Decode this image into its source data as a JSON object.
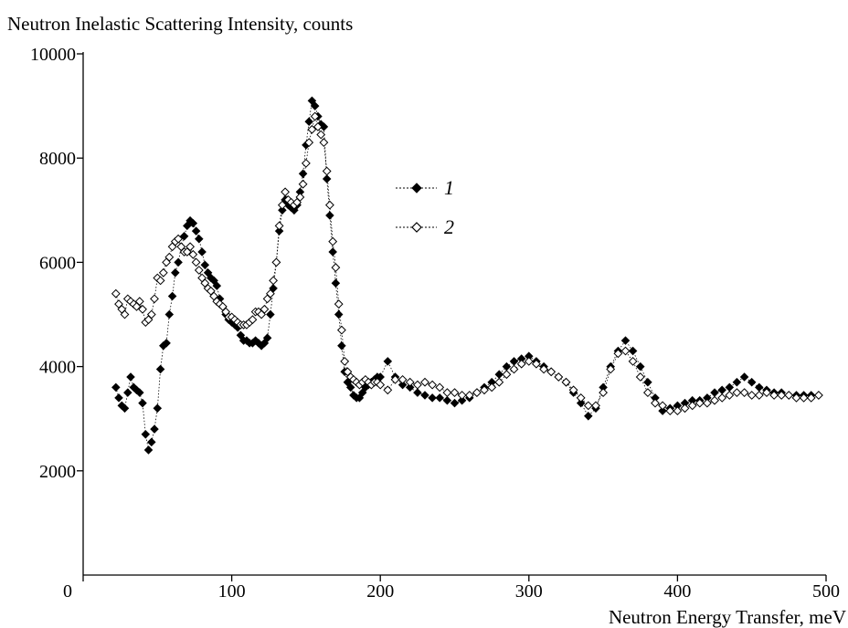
{
  "chart_data": {
    "type": "scatter",
    "ylabel": "Neutron Inelastic Scattering Intensity, counts",
    "xlabel": "Neutron Energy Transfer, meV",
    "xlim": [
      0,
      500
    ],
    "ylim": [
      0,
      10000
    ],
    "x_ticks": [
      0,
      100,
      200,
      300,
      400,
      500
    ],
    "y_ticks": [
      2000,
      4000,
      6000,
      8000,
      10000
    ],
    "y_tick_labels": [
      "2000",
      "4000",
      "6000",
      "8000",
      "10000"
    ],
    "origin_label": "0",
    "grid": false,
    "legend_position": "upper-middle",
    "series": [
      {
        "name": "1",
        "marker": "filled-diamond",
        "color": "#000000",
        "x": [
          22,
          24,
          26,
          28,
          30,
          32,
          34,
          36,
          38,
          40,
          42,
          44,
          46,
          48,
          50,
          52,
          54,
          56,
          58,
          60,
          62,
          64,
          66,
          68,
          70,
          72,
          74,
          76,
          78,
          80,
          82,
          84,
          86,
          88,
          90,
          92,
          94,
          96,
          98,
          100,
          102,
          104,
          106,
          108,
          110,
          112,
          114,
          116,
          118,
          120,
          122,
          124,
          126,
          128,
          130,
          132,
          134,
          136,
          138,
          140,
          142,
          144,
          146,
          148,
          150,
          152,
          154,
          156,
          158,
          160,
          162,
          164,
          166,
          168,
          170,
          172,
          174,
          176,
          178,
          180,
          182,
          184,
          186,
          188,
          190,
          192,
          194,
          196,
          198,
          200,
          205,
          210,
          215,
          220,
          225,
          230,
          235,
          240,
          245,
          250,
          255,
          260,
          265,
          270,
          275,
          280,
          285,
          290,
          295,
          300,
          305,
          310,
          315,
          320,
          325,
          330,
          335,
          340,
          345,
          350,
          355,
          360,
          365,
          370,
          375,
          380,
          385,
          390,
          395,
          400,
          405,
          410,
          415,
          420,
          425,
          430,
          435,
          440,
          445,
          450,
          455,
          460,
          465,
          470,
          475,
          480,
          485,
          490,
          495
        ],
        "values": [
          3600,
          3400,
          3250,
          3200,
          3500,
          3800,
          3600,
          3550,
          3500,
          3300,
          2700,
          2400,
          2550,
          2800,
          3200,
          3950,
          4400,
          4450,
          5000,
          5350,
          5800,
          6000,
          6300,
          6500,
          6700,
          6800,
          6750,
          6600,
          6450,
          6200,
          5950,
          5800,
          5700,
          5650,
          5550,
          5300,
          5150,
          5000,
          4900,
          4850,
          4800,
          4750,
          4600,
          4500,
          4500,
          4450,
          4450,
          4500,
          4450,
          4400,
          4450,
          4550,
          5000,
          5500,
          6000,
          6600,
          7000,
          7200,
          7100,
          7050,
          7000,
          7100,
          7350,
          7700,
          8250,
          8700,
          9100,
          9000,
          8800,
          8650,
          8600,
          7600,
          6900,
          6200,
          5600,
          5000,
          4400,
          3900,
          3700,
          3600,
          3450,
          3400,
          3400,
          3500,
          3600,
          3650,
          3700,
          3750,
          3800,
          3800,
          4100,
          3800,
          3650,
          3600,
          3500,
          3450,
          3400,
          3400,
          3350,
          3300,
          3350,
          3400,
          3500,
          3600,
          3700,
          3850,
          4000,
          4100,
          4150,
          4200,
          4100,
          4000,
          3900,
          3800,
          3700,
          3500,
          3300,
          3050,
          3200,
          3600,
          4000,
          4300,
          4500,
          4300,
          4000,
          3700,
          3400,
          3150,
          3200,
          3250,
          3300,
          3350,
          3350,
          3400,
          3500,
          3550,
          3600,
          3700,
          3800,
          3700,
          3600,
          3550,
          3500,
          3500,
          3450,
          3450,
          3450,
          3450,
          3450
        ]
      },
      {
        "name": "2",
        "marker": "open-diamond",
        "color": "#000000",
        "x": [
          22,
          24,
          26,
          28,
          30,
          32,
          34,
          36,
          38,
          40,
          42,
          44,
          46,
          48,
          50,
          52,
          54,
          56,
          58,
          60,
          62,
          64,
          66,
          68,
          70,
          72,
          74,
          76,
          78,
          80,
          82,
          84,
          86,
          88,
          90,
          92,
          94,
          96,
          98,
          100,
          102,
          104,
          106,
          108,
          110,
          112,
          114,
          116,
          118,
          120,
          122,
          124,
          126,
          128,
          130,
          132,
          134,
          136,
          138,
          140,
          142,
          144,
          146,
          148,
          150,
          152,
          154,
          156,
          158,
          160,
          162,
          164,
          166,
          168,
          170,
          172,
          174,
          176,
          178,
          180,
          182,
          184,
          186,
          188,
          190,
          192,
          194,
          196,
          198,
          200,
          205,
          210,
          215,
          220,
          225,
          230,
          235,
          240,
          245,
          250,
          255,
          260,
          265,
          270,
          275,
          280,
          285,
          290,
          295,
          300,
          305,
          310,
          315,
          320,
          325,
          330,
          335,
          340,
          345,
          350,
          355,
          360,
          365,
          370,
          375,
          380,
          385,
          390,
          395,
          400,
          405,
          410,
          415,
          420,
          425,
          430,
          435,
          440,
          445,
          450,
          455,
          460,
          465,
          470,
          475,
          480,
          485,
          490,
          495
        ],
        "values": [
          5400,
          5200,
          5100,
          5000,
          5300,
          5250,
          5200,
          5150,
          5250,
          5100,
          4850,
          4900,
          5000,
          5300,
          5700,
          5650,
          5800,
          6000,
          6100,
          6300,
          6400,
          6450,
          6300,
          6200,
          6200,
          6300,
          6150,
          6000,
          5850,
          5700,
          5600,
          5500,
          5450,
          5350,
          5250,
          5200,
          5150,
          5050,
          4950,
          4950,
          4900,
          4850,
          4800,
          4800,
          4800,
          4850,
          4900,
          5050,
          5050,
          5000,
          5100,
          5300,
          5400,
          5650,
          6000,
          6700,
          7100,
          7350,
          7200,
          7150,
          7100,
          7150,
          7250,
          7500,
          7900,
          8300,
          8550,
          8800,
          8600,
          8450,
          8300,
          7750,
          7100,
          6400,
          5900,
          5200,
          4700,
          4100,
          3900,
          3800,
          3750,
          3700,
          3650,
          3700,
          3750,
          3700,
          3650,
          3700,
          3700,
          3650,
          3550,
          3750,
          3750,
          3700,
          3650,
          3700,
          3650,
          3600,
          3500,
          3500,
          3450,
          3450,
          3500,
          3550,
          3600,
          3700,
          3850,
          3950,
          4050,
          4100,
          4050,
          3950,
          3900,
          3800,
          3700,
          3550,
          3400,
          3250,
          3250,
          3500,
          3950,
          4250,
          4300,
          4100,
          3800,
          3500,
          3300,
          3250,
          3150,
          3150,
          3200,
          3250,
          3300,
          3300,
          3350,
          3400,
          3450,
          3500,
          3500,
          3450,
          3450,
          3500,
          3450,
          3450,
          3450,
          3400,
          3400,
          3400,
          3450
        ]
      }
    ]
  }
}
